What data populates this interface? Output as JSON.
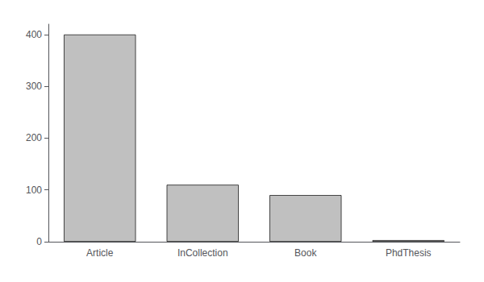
{
  "chart_data": {
    "type": "bar",
    "categories": [
      "Article",
      "InCollection",
      "Book",
      "PhdThesis"
    ],
    "values": [
      400,
      110,
      90,
      3
    ],
    "color": "#c0c0c0",
    "ylim": [
      0,
      420
    ],
    "yticks": [
      0,
      100,
      200,
      300,
      400
    ],
    "grid": false
  }
}
